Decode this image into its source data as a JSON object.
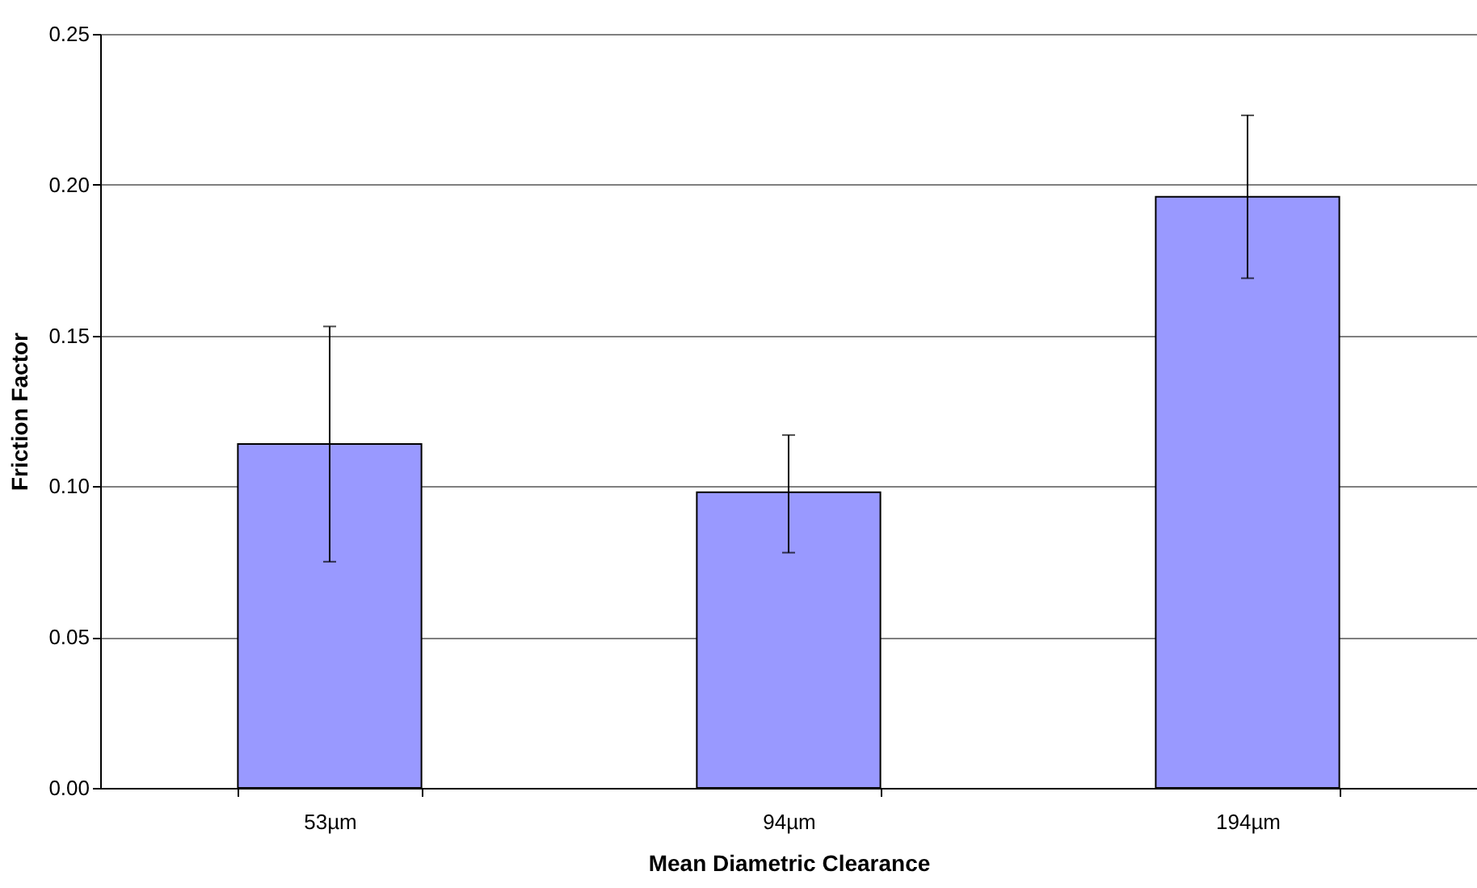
{
  "chart_data": {
    "type": "bar",
    "xlabel": "Mean Diametric Clearance",
    "ylabel": "Friction Factor",
    "categories": [
      "53µm",
      "94µm",
      "194µm"
    ],
    "values": [
      0.114,
      0.098,
      0.196
    ],
    "errors": [
      [
        0.075,
        0.153
      ],
      [
        0.078,
        0.117
      ],
      [
        0.169,
        0.223
      ]
    ],
    "color": "#9999ff",
    "ylim": [
      0,
      0.25
    ],
    "yticks": [
      {
        "value": 0,
        "label": "0.00"
      },
      {
        "value": 0.05,
        "label": "0.05"
      },
      {
        "value": 0.1,
        "label": "0.10"
      },
      {
        "value": 0.15,
        "label": "0.15"
      },
      {
        "value": 0.2,
        "label": "0.20"
      },
      {
        "value": 0.25,
        "label": "0.25"
      }
    ],
    "grid": "y"
  }
}
